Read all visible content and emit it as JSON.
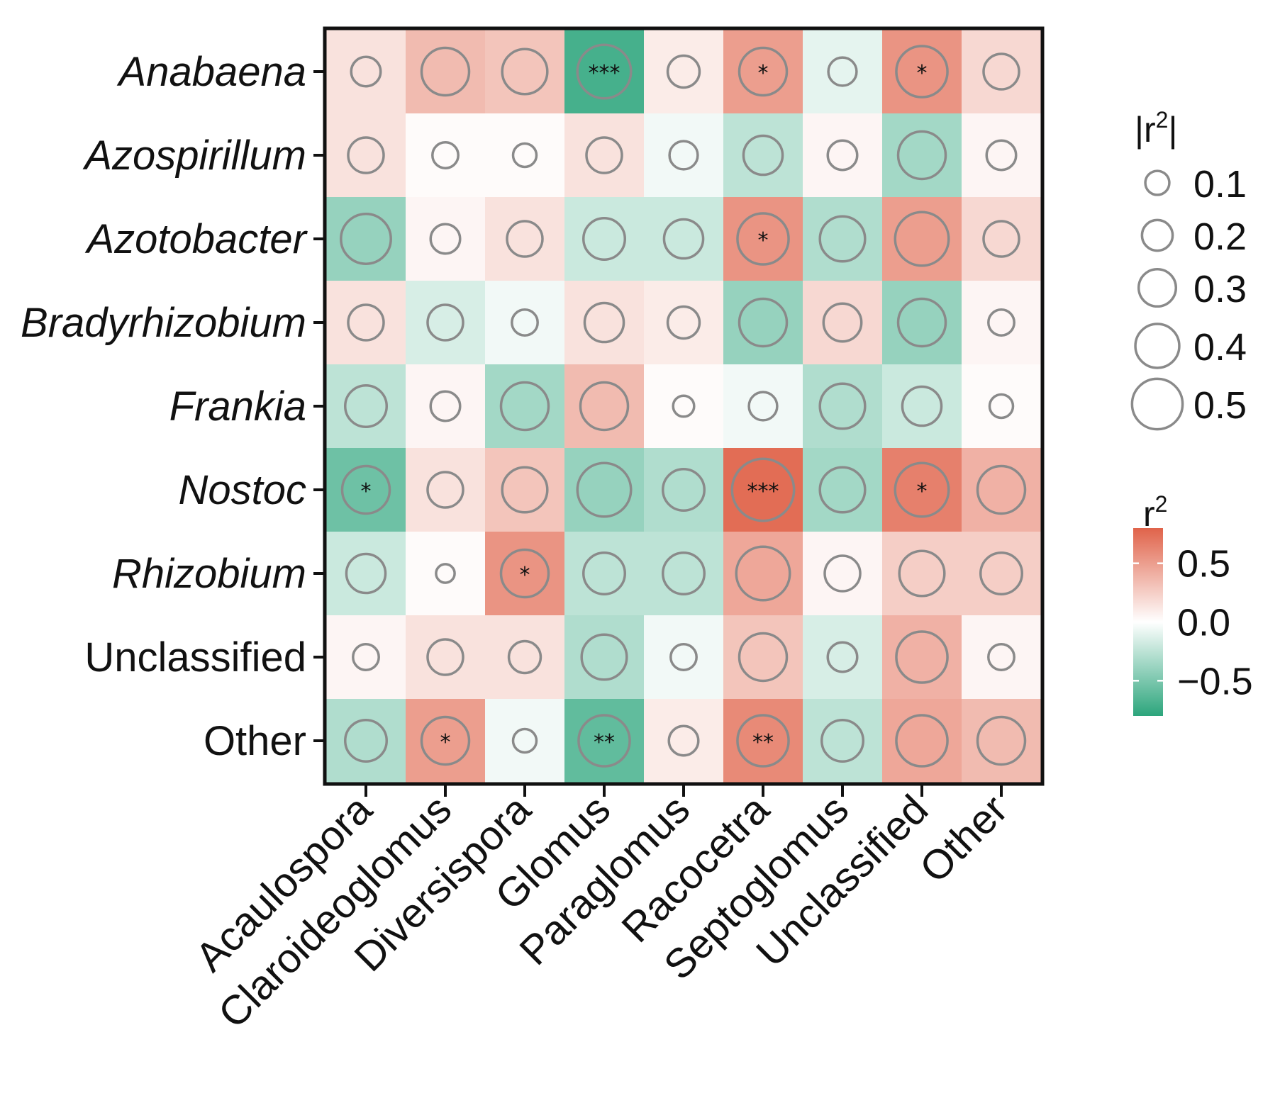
{
  "chart_data": {
    "type": "heatmap",
    "title": "",
    "rows": [
      "Anabaena",
      "Azospirillum",
      "Azotobacter",
      "Bradyrhizobium",
      "Frankia",
      "Nostoc",
      "Rhizobium",
      "Unclassified",
      "Other"
    ],
    "row_italic": [
      true,
      true,
      true,
      true,
      true,
      true,
      true,
      false,
      false
    ],
    "columns": [
      "Acaulospora",
      "Claroideoglomus",
      "Diversispora",
      "Glomus",
      "Paraglomus",
      "Racocetra",
      "Septoglomus",
      "Unclassified",
      "Other"
    ],
    "values": [
      [
        0.15,
        0.35,
        0.3,
        -0.7,
        0.1,
        0.5,
        -0.1,
        0.55,
        0.2
      ],
      [
        0.15,
        0.02,
        0.02,
        0.15,
        -0.05,
        -0.25,
        0.05,
        -0.35,
        0.05
      ],
      [
        -0.4,
        0.05,
        0.15,
        -0.2,
        -0.2,
        0.55,
        -0.3,
        0.5,
        0.2
      ],
      [
        0.15,
        -0.15,
        -0.05,
        0.15,
        0.1,
        -0.4,
        0.2,
        -0.4,
        0.05
      ],
      [
        -0.25,
        0.05,
        -0.35,
        0.35,
        0.02,
        -0.05,
        -0.3,
        -0.2,
        0.02
      ],
      [
        -0.55,
        0.15,
        0.3,
        -0.4,
        -0.3,
        0.75,
        -0.35,
        0.65,
        0.4
      ],
      [
        -0.2,
        0.02,
        0.55,
        -0.25,
        -0.25,
        0.45,
        0.05,
        0.25,
        0.25
      ],
      [
        0.05,
        0.15,
        0.15,
        -0.3,
        -0.05,
        0.3,
        -0.15,
        0.4,
        0.05
      ],
      [
        -0.3,
        0.5,
        -0.05,
        -0.6,
        0.1,
        0.6,
        -0.25,
        0.45,
        0.35
      ]
    ],
    "abs_r2": [
      [
        0.15,
        0.3,
        0.28,
        0.35,
        0.17,
        0.3,
        0.14,
        0.33,
        0.2
      ],
      [
        0.2,
        0.12,
        0.1,
        0.2,
        0.14,
        0.23,
        0.15,
        0.3,
        0.15
      ],
      [
        0.32,
        0.15,
        0.2,
        0.25,
        0.23,
        0.33,
        0.28,
        0.35,
        0.2
      ],
      [
        0.2,
        0.2,
        0.12,
        0.23,
        0.17,
        0.3,
        0.22,
        0.3,
        0.12
      ],
      [
        0.25,
        0.15,
        0.3,
        0.3,
        0.08,
        0.14,
        0.28,
        0.23,
        0.1
      ],
      [
        0.3,
        0.2,
        0.28,
        0.35,
        0.25,
        0.42,
        0.28,
        0.35,
        0.3
      ],
      [
        0.23,
        0.06,
        0.3,
        0.25,
        0.25,
        0.35,
        0.2,
        0.28,
        0.25
      ],
      [
        0.12,
        0.2,
        0.17,
        0.28,
        0.12,
        0.3,
        0.15,
        0.33,
        0.12
      ],
      [
        0.25,
        0.3,
        0.1,
        0.33,
        0.15,
        0.33,
        0.25,
        0.33,
        0.3
      ]
    ],
    "significance": [
      [
        "",
        "",
        "",
        "***",
        "",
        "*",
        "",
        "*",
        ""
      ],
      [
        "",
        "",
        "",
        "",
        "",
        "",
        "",
        "",
        ""
      ],
      [
        "",
        "",
        "",
        "",
        "",
        "*",
        "",
        "",
        ""
      ],
      [
        "",
        "",
        "",
        "",
        "",
        "",
        "",
        "",
        ""
      ],
      [
        "",
        "",
        "",
        "",
        "",
        "",
        "",
        "",
        ""
      ],
      [
        "*",
        "",
        "",
        "",
        "",
        "***",
        "",
        "*",
        ""
      ],
      [
        "",
        "",
        "*",
        "",
        "",
        "",
        "",
        "",
        ""
      ],
      [
        "",
        "",
        "",
        "",
        "",
        "",
        "",
        "",
        ""
      ],
      [
        "",
        "*",
        "",
        "**",
        "",
        "**",
        "",
        "",
        ""
      ]
    ],
    "size_legend": {
      "title_base": "|r",
      "title_sup": "2",
      "title_end": "|",
      "values": [
        0.1,
        0.2,
        0.3,
        0.4,
        0.5
      ],
      "labels": [
        "0.1",
        "0.2",
        "0.3",
        "0.4",
        "0.5"
      ]
    },
    "color_legend": {
      "title_base": "r",
      "title_sup": "2",
      "range": [
        -0.8,
        0.8
      ],
      "ticks": [
        0.5,
        0.0,
        -0.5
      ],
      "tick_labels": [
        "0.5",
        "0.0",
        "−0.5"
      ],
      "low_color": "#2ca57c",
      "mid_color": "#ffffff",
      "high_color": "#e0634a"
    }
  }
}
